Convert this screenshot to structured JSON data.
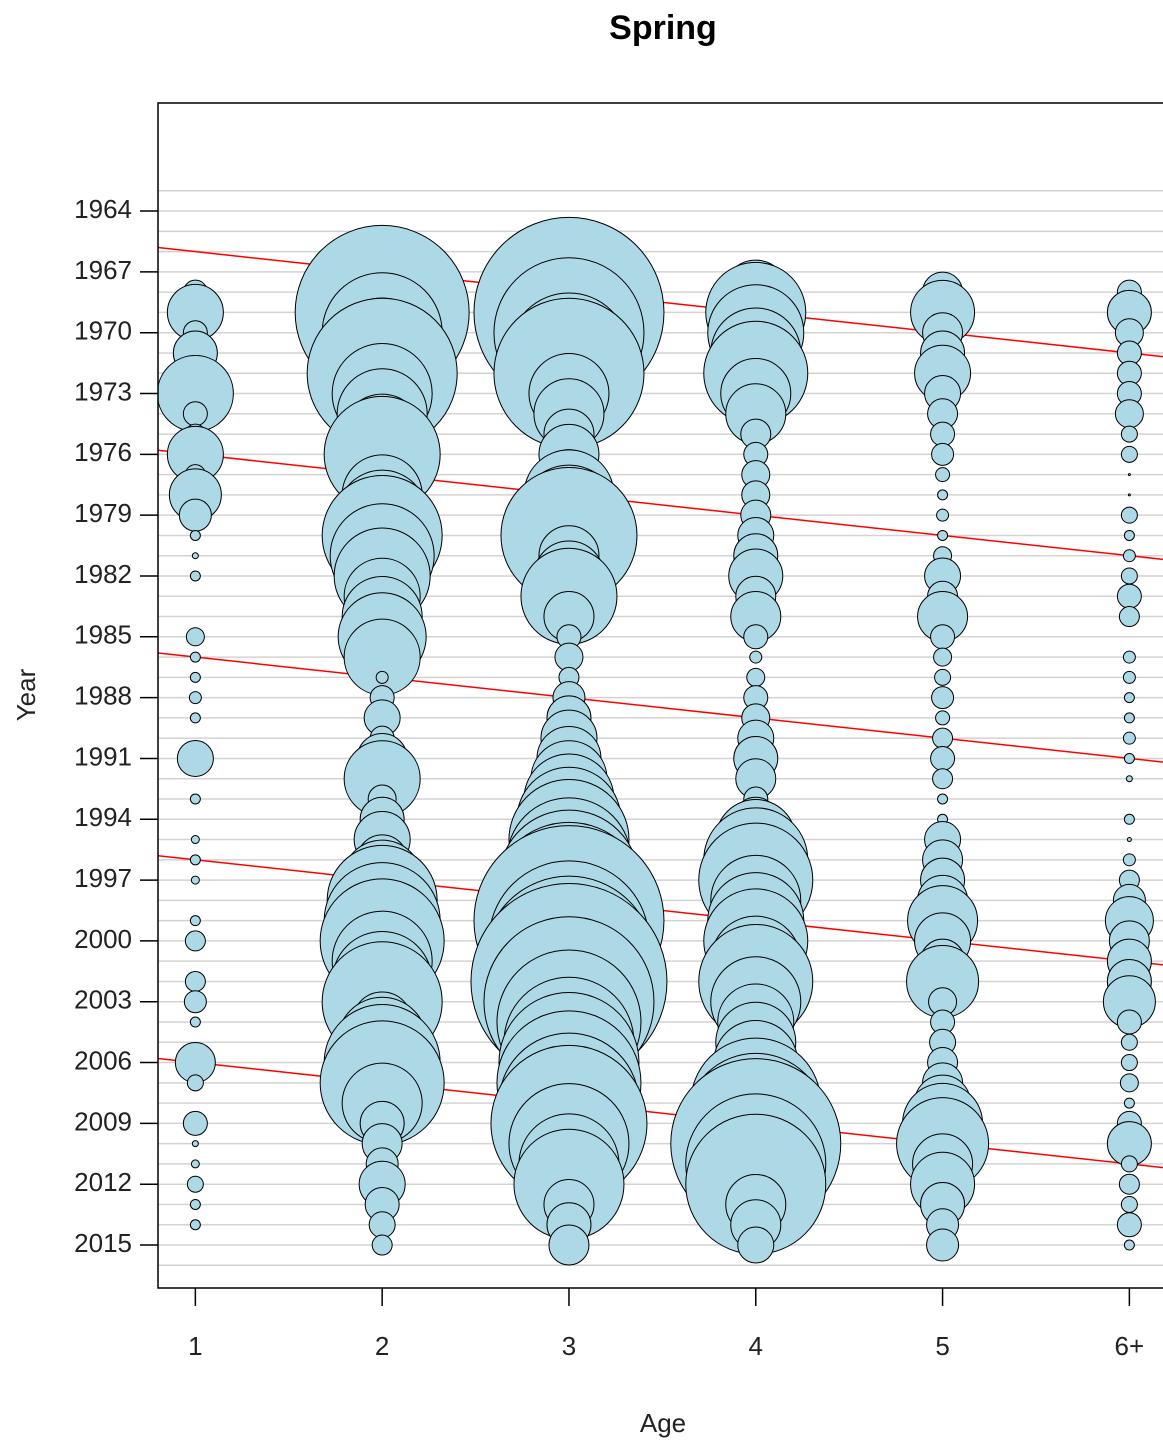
{
  "chart_data": {
    "type": "bubble",
    "title": "Spring",
    "x_label": "Age",
    "y_label": "Year",
    "categories": [
      "1",
      "2",
      "3",
      "4",
      "5",
      "6+"
    ],
    "y": [
      1968,
      1969,
      1970,
      1971,
      1972,
      1973,
      1974,
      1975,
      1976,
      1977,
      1978,
      1979,
      1980,
      1981,
      1982,
      1983,
      1984,
      1985,
      1986,
      1987,
      1988,
      1989,
      1990,
      1991,
      1992,
      1993,
      1994,
      1995,
      1996,
      1997,
      1998,
      1999,
      2000,
      2001,
      2002,
      2003,
      2004,
      2005,
      2006,
      2007,
      2008,
      2009,
      2010,
      2011,
      2012,
      2013,
      2014,
      2015
    ],
    "values": [
      [
        12,
        28,
        12,
        22,
        10,
        38,
        12,
        10,
        28,
        10,
        26,
        16,
        5,
        3,
        5,
        null,
        null,
        9,
        5,
        5,
        6,
        5,
        null,
        18,
        null,
        5,
        null,
        4,
        5,
        4,
        null,
        5,
        10,
        null,
        10,
        11,
        5,
        null,
        20,
        8,
        null,
        12,
        3,
        4,
        8,
        5,
        5,
        null
      ],
      [
        40,
        87,
        60,
        55,
        75,
        50,
        45,
        40,
        58,
        18,
        40,
        45,
        60,
        52,
        48,
        38,
        40,
        44,
        38,
        6,
        12,
        18,
        12,
        25,
        38,
        14,
        22,
        28,
        25,
        40,
        55,
        58,
        62,
        50,
        50,
        60,
        30,
        45,
        58,
        62,
        40,
        22,
        20,
        16,
        23,
        17,
        13,
        10
      ],
      [
        70,
        95,
        75,
        60,
        75,
        40,
        35,
        25,
        30,
        25,
        45,
        50,
        68,
        30,
        35,
        48,
        25,
        12,
        14,
        10,
        16,
        22,
        28,
        32,
        38,
        45,
        52,
        60,
        62,
        70,
        78,
        95,
        80,
        85,
        98,
        85,
        72,
        65,
        70,
        72,
        70,
        78,
        60,
        50,
        55,
        25,
        22,
        20
      ],
      [
        32,
        50,
        48,
        45,
        52,
        35,
        30,
        15,
        12,
        14,
        14,
        15,
        18,
        22,
        27,
        20,
        25,
        12,
        6,
        9,
        12,
        14,
        18,
        22,
        20,
        12,
        22,
        40,
        52,
        57,
        45,
        48,
        52,
        45,
        57,
        45,
        38,
        40,
        42,
        38,
        65,
        70,
        85,
        70,
        70,
        30,
        25,
        18
      ],
      [
        20,
        32,
        20,
        22,
        28,
        18,
        15,
        12,
        11,
        7,
        5,
        6,
        5,
        9,
        18,
        15,
        25,
        12,
        9,
        8,
        11,
        7,
        10,
        12,
        10,
        5,
        5,
        18,
        20,
        22,
        25,
        35,
        28,
        22,
        36,
        14,
        12,
        13,
        15,
        20,
        28,
        40,
        46,
        30,
        32,
        22,
        16,
        16
      ],
      [
        12,
        22,
        14,
        12,
        12,
        12,
        14,
        8,
        8,
        1,
        1,
        8,
        5,
        6,
        8,
        12,
        10,
        null,
        6,
        6,
        5,
        5,
        6,
        5,
        3,
        null,
        5,
        2,
        6,
        10,
        16,
        24,
        20,
        22,
        22,
        26,
        12,
        8,
        8,
        9,
        5,
        12,
        22,
        8,
        10,
        8,
        12,
        5
      ]
    ],
    "color": "#add8e6",
    "xlim": [
      0.8,
      6.18
    ],
    "ylim": [
      2017.12,
      1958.67
    ],
    "yticks": [
      1964,
      1967,
      1970,
      1973,
      1976,
      1979,
      1982,
      1985,
      1988,
      1991,
      1994,
      1997,
      2000,
      2003,
      2006,
      2009,
      2012,
      2015
    ],
    "ygrid": [
      1963,
      1964,
      1965,
      1966,
      1967,
      1968,
      1969,
      1970,
      1971,
      1972,
      1973,
      1974,
      1975,
      1976,
      1977,
      1978,
      1979,
      1980,
      1981,
      1982,
      1983,
      1984,
      1985,
      1986,
      1987,
      1988,
      1989,
      1990,
      1991,
      1992,
      1993,
      1994,
      1995,
      1996,
      1997,
      1998,
      1999,
      2000,
      2001,
      2002,
      2003,
      2004,
      2005,
      2006,
      2007,
      2008,
      2009,
      2010,
      2011,
      2012,
      2013,
      2014,
      2015,
      2016
    ],
    "cohort_lines": [
      1965,
      1975,
      1985,
      1995,
      2005
    ],
    "cohort_color": "#ff0000",
    "grid": true
  }
}
